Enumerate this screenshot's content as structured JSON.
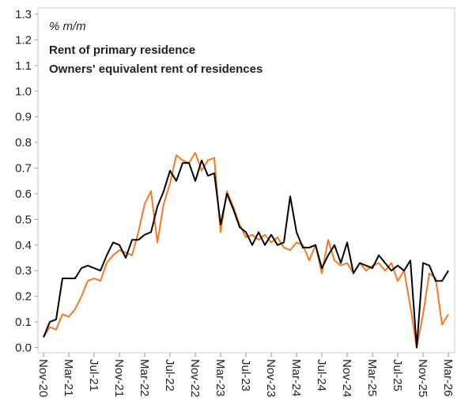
{
  "chart_data": {
    "type": "line",
    "annotation": "% m/m",
    "categories": [
      "Nov-20",
      null,
      null,
      null,
      "Mar-21",
      null,
      null,
      null,
      "Jul-21",
      null,
      null,
      null,
      "Nov-21",
      null,
      null,
      null,
      "Mar-22",
      null,
      null,
      null,
      "Jul-22",
      null,
      null,
      null,
      "Nov-22",
      null,
      null,
      null,
      "Mar-23",
      null,
      null,
      null,
      "Jul-23",
      null,
      null,
      null,
      "Nov-23",
      null,
      null,
      null,
      "Mar-24",
      null,
      null,
      null,
      "Jul-24",
      null,
      null,
      null,
      "Nov-24",
      null,
      null,
      null,
      "Mar-25",
      null,
      null,
      null,
      "Jul-25",
      null,
      null,
      null,
      "Nov-25",
      null,
      null,
      null,
      "Mar-26"
    ],
    "series": [
      {
        "name": "Rent of primary residence",
        "color": "#f47920",
        "values": [
          0.04,
          0.08,
          0.07,
          0.13,
          0.12,
          0.15,
          0.2,
          0.26,
          0.27,
          0.26,
          0.33,
          0.36,
          0.38,
          0.37,
          0.36,
          0.45,
          0.56,
          0.61,
          0.41,
          0.56,
          0.64,
          0.75,
          0.73,
          0.72,
          0.76,
          0.69,
          0.73,
          0.74,
          0.45,
          0.61,
          0.55,
          0.48,
          0.43,
          0.44,
          0.42,
          0.44,
          0.41,
          0.43,
          0.39,
          0.38,
          0.41,
          0.4,
          0.34,
          0.4,
          0.29,
          0.42,
          0.34,
          0.32,
          0.33,
          0.29,
          0.33,
          0.3,
          0.32,
          0.33,
          0.3,
          0.33,
          0.26,
          0.3,
          0.16,
          0.0,
          0.13,
          0.29,
          0.27,
          0.09,
          0.13
        ]
      },
      {
        "name": "Owners' equivalent rent of residences",
        "color": "#000000",
        "values": [
          0.04,
          0.1,
          0.11,
          0.27,
          0.27,
          0.27,
          0.31,
          0.32,
          0.31,
          0.3,
          0.36,
          0.41,
          0.4,
          0.35,
          0.42,
          0.42,
          0.44,
          0.45,
          0.55,
          0.61,
          0.69,
          0.65,
          0.72,
          0.72,
          0.65,
          0.73,
          0.67,
          0.68,
          0.48,
          0.6,
          0.54,
          0.47,
          0.45,
          0.4,
          0.45,
          0.4,
          0.44,
          0.4,
          0.41,
          0.59,
          0.45,
          0.39,
          0.39,
          0.4,
          0.31,
          0.36,
          0.4,
          0.33,
          0.41,
          0.29,
          0.33,
          0.32,
          0.31,
          0.36,
          0.33,
          0.3,
          0.32,
          0.3,
          0.34,
          0.0,
          0.33,
          0.32,
          0.26,
          0.26,
          0.3
        ]
      }
    ],
    "ylim": [
      -0.02,
      1.3
    ],
    "yticks": [
      {
        "value": 0,
        "label": "0.0"
      },
      0.1,
      0.2,
      0.3,
      0.4,
      0.5,
      0.6,
      0.7,
      0.8,
      0.9,
      {
        "value": 1,
        "label": "1.0"
      },
      1.1,
      1.2,
      1.3
    ]
  }
}
